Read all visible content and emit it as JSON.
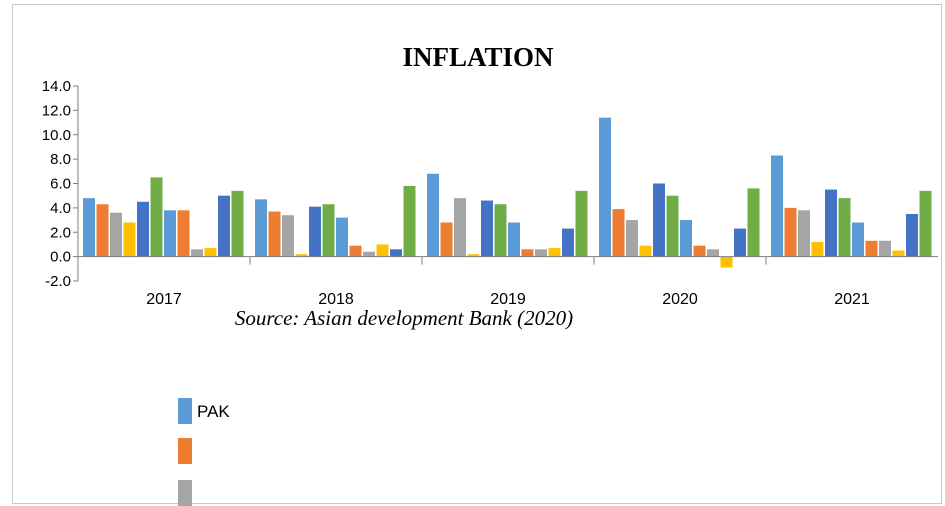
{
  "chart_data": {
    "type": "bar",
    "title": "INFLATION",
    "source": "Source: Asian development Bank (2020)",
    "categories": [
      "2017",
      "2018",
      "2019",
      "2020",
      "2021"
    ],
    "ylim": [
      -2.0,
      14.0
    ],
    "yticks": [
      "14.0",
      "12.0",
      "10.0",
      "8.0",
      "6.0",
      "4.0",
      "2.0",
      "0.0",
      "-2.0"
    ],
    "ytick_values": [
      14,
      12,
      10,
      8,
      6,
      4,
      2,
      0,
      -2
    ],
    "grid": false,
    "legend_position": "bottom-left",
    "series": [
      {
        "name": "PAK",
        "color": "#5B9BD5",
        "values": [
          4.8,
          4.7,
          6.8,
          11.4,
          8.3
        ]
      },
      {
        "color": "#ED7D31",
        "values": [
          4.3,
          3.7,
          2.8,
          3.9,
          4.0
        ]
      },
      {
        "color": "#A5A5A5",
        "values": [
          3.6,
          3.4,
          4.8,
          3.0,
          3.8
        ]
      },
      {
        "color": "#FFC000",
        "values": [
          2.8,
          0.2,
          0.2,
          0.9,
          1.2
        ]
      },
      {
        "color": "#4472C4",
        "values": [
          4.5,
          4.1,
          4.6,
          6.0,
          5.5
        ]
      },
      {
        "color": "#70AD47",
        "values": [
          6.5,
          4.3,
          4.3,
          5.0,
          4.8
        ]
      },
      {
        "color": "#5B9BD5",
        "values": [
          3.8,
          3.2,
          2.8,
          3.0,
          2.8
        ]
      },
      {
        "color": "#ED7D31",
        "values": [
          3.8,
          0.9,
          0.6,
          0.9,
          1.3
        ]
      },
      {
        "color": "#A5A5A5",
        "values": [
          0.6,
          0.4,
          0.6,
          0.6,
          1.3
        ]
      },
      {
        "color": "#FFC000",
        "values": [
          0.7,
          1.0,
          0.7,
          -0.9,
          0.5
        ]
      },
      {
        "color": "#4472C4",
        "values": [
          5.0,
          0.6,
          2.3,
          2.3,
          3.5
        ]
      },
      {
        "color": "#70AD47",
        "values": [
          5.4,
          5.8,
          5.4,
          5.6,
          5.4
        ]
      }
    ],
    "legend": [
      {
        "label": "PAK",
        "color": "#5B9BD5"
      },
      {
        "label": "",
        "color": "#ED7D31"
      },
      {
        "label": "",
        "color": "#A5A5A5"
      }
    ]
  }
}
